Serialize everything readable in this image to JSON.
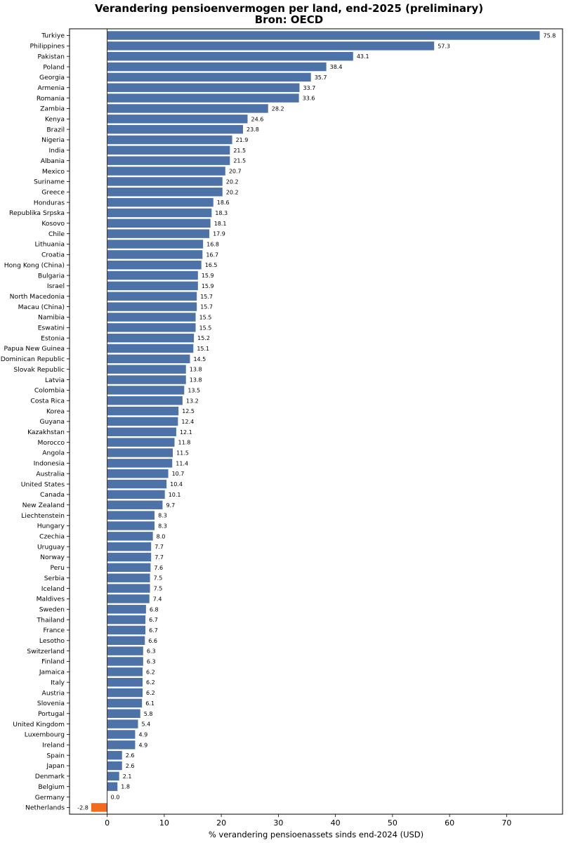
{
  "chart_data": {
    "type": "bar",
    "orientation": "horizontal",
    "title": "Verandering pensioenvermogen per land, end-2025 (preliminary)",
    "subtitle": "Bron: OECD",
    "xlabel": "% verandering pensioenassets sinds end-2024 (USD)",
    "ylabel": "",
    "xlim": [
      -6.6,
      79.8
    ],
    "xticks": [
      0,
      10,
      20,
      30,
      40,
      50,
      60,
      70
    ],
    "grid": false,
    "legend": "none",
    "colors": {
      "default": "#4c72a8",
      "highlight": "#f26b1d"
    },
    "highlight_category": "Netherlands",
    "categories": [
      "Turkiye",
      "Philippines",
      "Pakistan",
      "Poland",
      "Georgia",
      "Armenia",
      "Romania",
      "Zambia",
      "Kenya",
      "Brazil",
      "Nigeria",
      "India",
      "Albania",
      "Mexico",
      "Suriname",
      "Greece",
      "Honduras",
      "Republika Srpska",
      "Kosovo",
      "Chile",
      "Lithuania",
      "Croatia",
      "Hong Kong (China)",
      "Bulgaria",
      "Israel",
      "North Macedonia",
      "Macau (China)",
      "Namibia",
      "Eswatini",
      "Estonia",
      "Papua New Guinea",
      "Dominican Republic",
      "Slovak Republic",
      "Latvia",
      "Colombia",
      "Costa Rica",
      "Korea",
      "Guyana",
      "Kazakhstan",
      "Morocco",
      "Angola",
      "Indonesia",
      "Australia",
      "United States",
      "Canada",
      "New Zealand",
      "Liechtenstein",
      "Hungary",
      "Czechia",
      "Uruguay",
      "Norway",
      "Peru",
      "Serbia",
      "Iceland",
      "Maldives",
      "Sweden",
      "Thailand",
      "France",
      "Lesotho",
      "Switzerland",
      "Finland",
      "Jamaica",
      "Italy",
      "Austria",
      "Slovenia",
      "Portugal",
      "United Kingdom",
      "Luxembourg",
      "Ireland",
      "Spain",
      "Japan",
      "Denmark",
      "Belgium",
      "Germany",
      "Netherlands"
    ],
    "values": [
      75.8,
      57.3,
      43.1,
      38.4,
      35.7,
      33.7,
      33.6,
      28.2,
      24.6,
      23.8,
      21.9,
      21.5,
      21.5,
      20.7,
      20.2,
      20.2,
      18.6,
      18.3,
      18.1,
      17.9,
      16.8,
      16.7,
      16.5,
      15.9,
      15.9,
      15.7,
      15.7,
      15.5,
      15.5,
      15.2,
      15.1,
      14.5,
      13.8,
      13.8,
      13.5,
      13.2,
      12.5,
      12.4,
      12.1,
      11.8,
      11.5,
      11.4,
      10.7,
      10.4,
      10.1,
      9.7,
      8.3,
      8.3,
      8.0,
      7.7,
      7.7,
      7.6,
      7.5,
      7.5,
      7.4,
      6.8,
      6.7,
      6.7,
      6.6,
      6.3,
      6.3,
      6.2,
      6.2,
      6.2,
      6.1,
      5.8,
      5.4,
      4.9,
      4.9,
      2.6,
      2.6,
      2.1,
      1.8,
      0.0,
      -2.8
    ],
    "value_labels": [
      "75.8",
      "57.3",
      "43.1",
      "38.4",
      "35.7",
      "33.7",
      "33.6",
      "28.2",
      "24.6",
      "23.8",
      "21.9",
      "21.5",
      "21.5",
      "20.7",
      "20.2",
      "20.2",
      "18.6",
      "18.3",
      "18.1",
      "17.9",
      "16.8",
      "16.7",
      "16.5",
      "15.9",
      "15.9",
      "15.7",
      "15.7",
      "15.5",
      "15.5",
      "15.2",
      "15.1",
      "14.5",
      "13.8",
      "13.8",
      "13.5",
      "13.2",
      "12.5",
      "12.4",
      "12.1",
      "11.8",
      "11.5",
      "11.4",
      "10.7",
      "10.4",
      "10.1",
      "9.7",
      "8.3",
      "8.3",
      "8.0",
      "7.7",
      "7.7",
      "7.6",
      "7.5",
      "7.5",
      "7.4",
      "6.8",
      "6.7",
      "6.7",
      "6.6",
      "6.3",
      "6.3",
      "6.2",
      "6.2",
      "6.2",
      "6.1",
      "5.8",
      "5.4",
      "4.9",
      "4.9",
      "2.6",
      "2.6",
      "2.1",
      "1.8",
      "0.0",
      "-2.8"
    ]
  }
}
